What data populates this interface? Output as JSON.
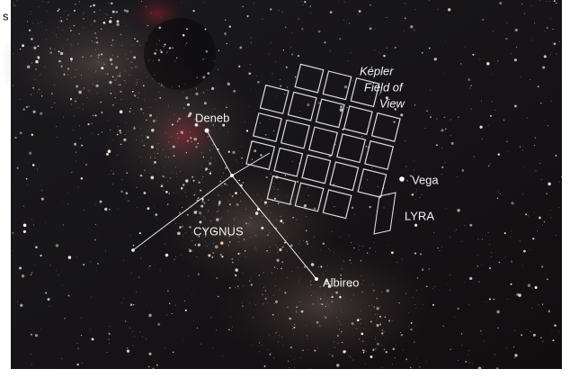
{
  "edge_text": "s",
  "labels": {
    "kepler_field": [
      "Kepler",
      "Field of",
      "View"
    ],
    "deneb": "Deneb",
    "vega": "Vega",
    "lyra": "LYRA",
    "cygnus": "CYGNUS",
    "albireo": "Albireo"
  }
}
